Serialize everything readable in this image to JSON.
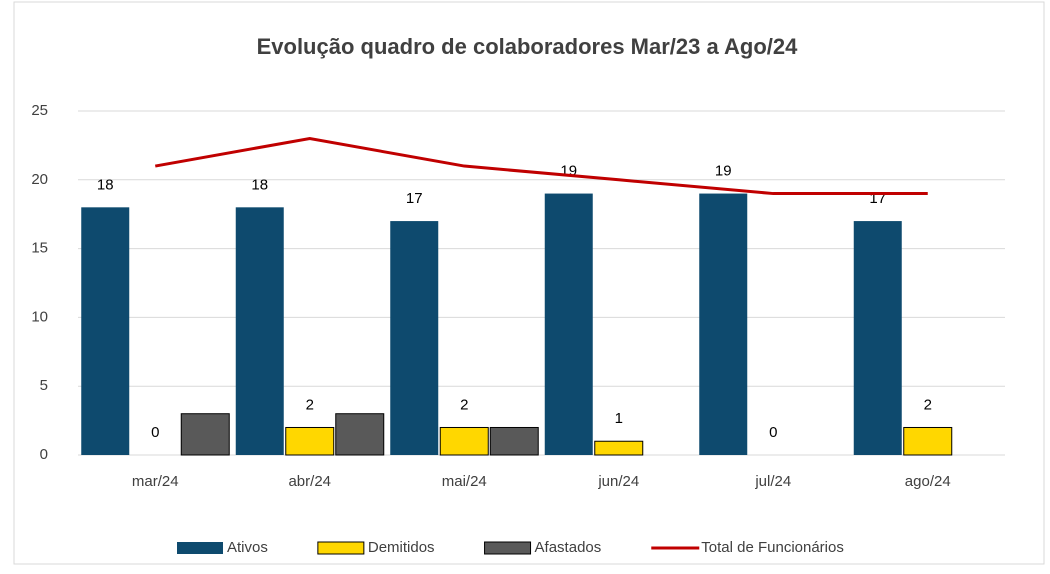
{
  "chart_data": {
    "type": "bar",
    "title": "Evolução quadro de colaboradores Mar/23 a Ago/24",
    "categories": [
      "mar/24",
      "abr/24",
      "mai/24",
      "jun/24",
      "jul/24",
      "ago/24"
    ],
    "series": [
      {
        "name": "Ativos",
        "color": "#0e4a6e",
        "values": [
          18,
          18,
          17,
          19,
          19,
          17
        ],
        "labels": true
      },
      {
        "name": "Demitidos",
        "color": "#ffd700",
        "values": [
          0,
          2,
          2,
          1,
          0,
          2
        ],
        "labels": true
      },
      {
        "name": "Afastados",
        "color": "#595959",
        "values": [
          3,
          3,
          2,
          0,
          0,
          0
        ],
        "labels": false
      },
      {
        "name": "Total de Funcionários",
        "color": "#c00000",
        "type": "line",
        "values": [
          21,
          23,
          21,
          20,
          19,
          19
        ]
      }
    ],
    "ylim": [
      0,
      25
    ],
    "yticks": [
      0,
      5,
      10,
      15,
      20,
      25
    ],
    "grid": true,
    "legend": "bottom"
  }
}
